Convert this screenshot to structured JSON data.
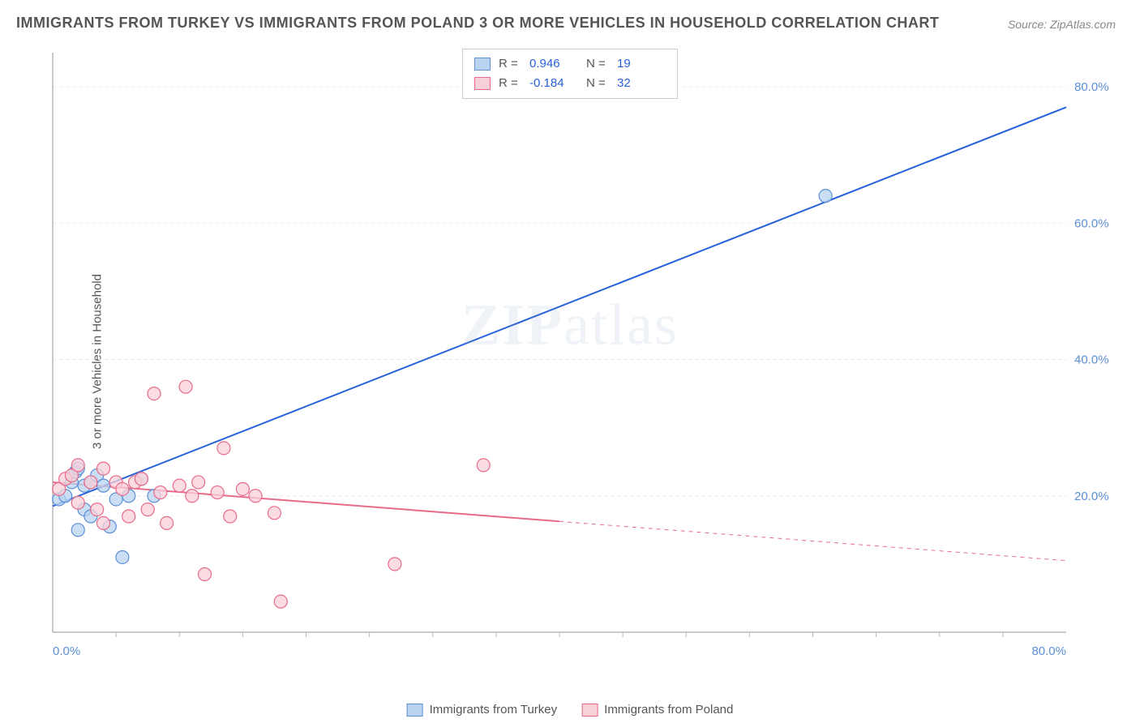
{
  "title": "IMMIGRANTS FROM TURKEY VS IMMIGRANTS FROM POLAND 3 OR MORE VEHICLES IN HOUSEHOLD CORRELATION CHART",
  "source": "Source: ZipAtlas.com",
  "watermark": "ZIPatlas",
  "y_axis_label": "3 or more Vehicles in Household",
  "chart": {
    "type": "scatter",
    "background_color": "#ffffff",
    "grid_color": "#e8e8e8",
    "axis_line_color": "#b8b8b8",
    "tick_label_color": "#5b8fd6",
    "xlim": [
      0,
      80
    ],
    "ylim": [
      0,
      85
    ],
    "x_ticks": [
      {
        "value": 0,
        "label": "0.0%"
      },
      {
        "value": 80,
        "label": "80.0%"
      }
    ],
    "y_ticks": [
      {
        "value": 20,
        "label": "20.0%"
      },
      {
        "value": 40,
        "label": "40.0%"
      },
      {
        "value": 60,
        "label": "60.0%"
      },
      {
        "value": 80,
        "label": "80.0%"
      }
    ],
    "series": [
      {
        "name": "Immigrants from Turkey",
        "marker_fill": "#b8d4f0",
        "marker_stroke": "#5b8fd6",
        "line_color": "#2962d9",
        "line_width": 2,
        "marker_radius": 8,
        "r_value": "0.946",
        "n_value": "19",
        "points": [
          [
            0.5,
            19.5
          ],
          [
            1.0,
            20.0
          ],
          [
            1.5,
            22.0
          ],
          [
            1.8,
            23.5
          ],
          [
            2.0,
            24.0
          ],
          [
            2.0,
            15.0
          ],
          [
            2.5,
            18.0
          ],
          [
            2.5,
            21.5
          ],
          [
            3.0,
            17.0
          ],
          [
            3.0,
            22.0
          ],
          [
            3.5,
            23.0
          ],
          [
            4.0,
            21.5
          ],
          [
            4.5,
            15.5
          ],
          [
            5.0,
            19.5
          ],
          [
            5.5,
            11.0
          ],
          [
            6.0,
            20.0
          ],
          [
            7.0,
            22.5
          ],
          [
            8.0,
            20.0
          ],
          [
            61.0,
            64.0
          ]
        ],
        "trend": {
          "x1": 0,
          "y1": 18.5,
          "x2": 80,
          "y2": 77.0,
          "solid_until_x": 80
        }
      },
      {
        "name": "Immigrants from Poland",
        "marker_fill": "#f8d0d8",
        "marker_stroke": "#e86b8a",
        "line_color": "#e86b8a",
        "line_width": 2,
        "marker_radius": 8,
        "r_value": "-0.184",
        "n_value": "32",
        "points": [
          [
            0.5,
            21.0
          ],
          [
            1.0,
            22.5
          ],
          [
            1.5,
            23.0
          ],
          [
            2.0,
            24.5
          ],
          [
            2.0,
            19.0
          ],
          [
            3.0,
            22.0
          ],
          [
            3.5,
            18.0
          ],
          [
            4.0,
            24.0
          ],
          [
            4.0,
            16.0
          ],
          [
            5.0,
            22.0
          ],
          [
            5.5,
            21.0
          ],
          [
            6.0,
            17.0
          ],
          [
            6.5,
            22.0
          ],
          [
            7.0,
            22.5
          ],
          [
            7.5,
            18.0
          ],
          [
            8.0,
            35.0
          ],
          [
            8.5,
            20.5
          ],
          [
            9.0,
            16.0
          ],
          [
            10.0,
            21.5
          ],
          [
            10.5,
            36.0
          ],
          [
            11.0,
            20.0
          ],
          [
            11.5,
            22.0
          ],
          [
            12.0,
            8.5
          ],
          [
            13.0,
            20.5
          ],
          [
            13.5,
            27.0
          ],
          [
            14.0,
            17.0
          ],
          [
            15.0,
            21.0
          ],
          [
            16.0,
            20.0
          ],
          [
            17.5,
            17.5
          ],
          [
            18.0,
            4.5
          ],
          [
            27.0,
            10.0
          ],
          [
            34.0,
            24.5
          ]
        ],
        "trend": {
          "x1": 0,
          "y1": 22.0,
          "x2": 80,
          "y2": 10.5,
          "solid_until_x": 40
        }
      }
    ]
  },
  "legend_top": {
    "r_label": "R =",
    "n_label": "N ="
  },
  "legend_bottom_labels": [
    "Immigrants from Turkey",
    "Immigrants from Poland"
  ]
}
